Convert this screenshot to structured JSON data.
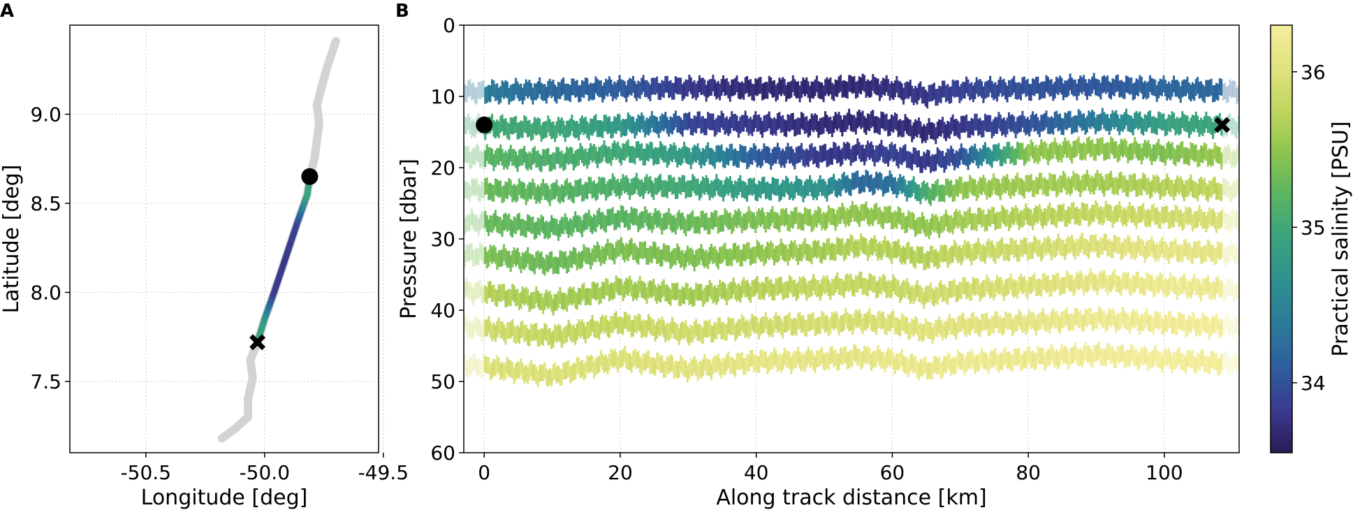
{
  "panels": {
    "a": {
      "letter": "A"
    },
    "b": {
      "letter": "B"
    }
  },
  "colorbar": {
    "label": "Practical salinity [PSU]",
    "ticks": [
      "34",
      "35",
      "36"
    ],
    "range": [
      33.55,
      36.3
    ],
    "colormap": [
      "#2b1a55",
      "#3a3b8f",
      "#2f5e9e",
      "#2c7a99",
      "#2f9090",
      "#3aa37f",
      "#5ab463",
      "#8cc44f",
      "#bfd55e",
      "#e0e27e",
      "#f4ee9e"
    ]
  },
  "chart_data": [
    {
      "type": "line",
      "panel": "A",
      "xlabel": "Longitude [deg]",
      "ylabel": "Latitude [deg]",
      "xlim": [
        -50.82,
        -49.52
      ],
      "ylim": [
        7.1,
        9.5
      ],
      "xticks": [
        "-50.5",
        "-50.0",
        "-49.5"
      ],
      "xtick_values": [
        -50.5,
        -50.0,
        -49.5
      ],
      "yticks": [
        "7.5",
        "8.0",
        "8.5",
        "9.0"
      ],
      "ytick_values": [
        7.5,
        8.0,
        8.5,
        9.0
      ],
      "grid": true,
      "full_track_color": "#d3d3d3",
      "full_track": {
        "lon": [
          -50.18,
          -50.12,
          -50.07,
          -50.07,
          -50.05,
          -50.06,
          -50.03,
          -50.0,
          -49.96,
          -49.91,
          -49.86,
          -49.82,
          -49.81,
          -49.79,
          -49.78,
          -49.77,
          -49.78,
          -49.76,
          -49.74,
          -49.72,
          -49.7
        ],
        "lat": [
          7.18,
          7.24,
          7.3,
          7.4,
          7.52,
          7.62,
          7.72,
          7.85,
          8.0,
          8.2,
          8.4,
          8.55,
          8.65,
          8.75,
          8.85,
          8.95,
          9.05,
          9.15,
          9.25,
          9.33,
          9.41
        ]
      },
      "section_track": {
        "lon": [
          -50.03,
          -50.0,
          -49.96,
          -49.91,
          -49.86,
          -49.82,
          -49.81
        ],
        "lat": [
          7.72,
          7.85,
          8.0,
          8.2,
          8.4,
          8.55,
          8.65
        ],
        "salinity": [
          35.05,
          34.8,
          33.85,
          33.8,
          33.9,
          34.9,
          35.0
        ]
      },
      "start_marker": {
        "lon": -49.81,
        "lat": 8.65,
        "symbol": "circle"
      },
      "end_marker": {
        "lon": -50.03,
        "lat": 7.72,
        "symbol": "x"
      }
    },
    {
      "type": "heatmap",
      "panel": "B",
      "xlabel": "Along track distance [km]",
      "ylabel": "Pressure [dbar]",
      "xlim": [
        -3,
        111
      ],
      "ylim": [
        60,
        0
      ],
      "xticks": [
        "0",
        "20",
        "40",
        "60",
        "80",
        "100"
      ],
      "xtick_values": [
        0,
        20,
        40,
        60,
        80,
        100
      ],
      "yticks": [
        "0",
        "10",
        "20",
        "30",
        "40",
        "50",
        "60"
      ],
      "ytick_values": [
        0,
        10,
        20,
        30,
        40,
        50,
        60
      ],
      "grid": true,
      "section_range_km": [
        0,
        108.5
      ],
      "layers": [
        {
          "nominal_pressure": 9.0,
          "x": [
            -3,
            0,
            10,
            20,
            30,
            40,
            50,
            55,
            60,
            65,
            70,
            80,
            90,
            100,
            111
          ],
          "pressure": [
            9.3,
            9.4,
            9.2,
            8.9,
            8.8,
            8.9,
            9.0,
            8.5,
            8.9,
            9.9,
            9.1,
            8.9,
            8.6,
            8.9,
            9.3
          ],
          "salinity": [
            34.4,
            34.4,
            34.2,
            34.1,
            33.8,
            33.7,
            33.7,
            33.7,
            33.75,
            33.8,
            33.9,
            34.0,
            34.05,
            34.2,
            34.2
          ]
        },
        {
          "nominal_pressure": 14.0,
          "x": [
            -3,
            0,
            10,
            20,
            30,
            40,
            50,
            55,
            60,
            65,
            70,
            80,
            90,
            100,
            111
          ],
          "pressure": [
            14.2,
            14.2,
            14.6,
            14.1,
            13.8,
            13.9,
            14.0,
            13.5,
            13.9,
            15.0,
            14.2,
            13.9,
            13.5,
            13.8,
            14.2
          ],
          "salinity": [
            35.0,
            35.0,
            35.0,
            34.8,
            33.9,
            33.8,
            33.7,
            33.7,
            33.75,
            33.7,
            33.8,
            34.0,
            34.4,
            34.9,
            35.0
          ]
        },
        {
          "nominal_pressure": 18.5,
          "x": [
            -3,
            0,
            10,
            20,
            30,
            40,
            50,
            55,
            60,
            65,
            70,
            80,
            90,
            100,
            111
          ],
          "pressure": [
            18.4,
            18.5,
            18.9,
            17.8,
            18.3,
            18.4,
            18.3,
            17.8,
            18.1,
            19.2,
            18.5,
            17.9,
            17.3,
            17.9,
            18.5
          ],
          "salinity": [
            35.2,
            35.2,
            35.1,
            35.0,
            34.8,
            34.1,
            33.8,
            33.8,
            33.9,
            33.8,
            34.0,
            35.5,
            35.5,
            35.4,
            35.6
          ]
        },
        {
          "nominal_pressure": 23.0,
          "x": [
            -3,
            0,
            10,
            20,
            30,
            40,
            50,
            55,
            60,
            65,
            70,
            80,
            90,
            100,
            111
          ],
          "pressure": [
            23.0,
            23.1,
            23.5,
            22.6,
            22.7,
            23.0,
            22.9,
            22.0,
            22.3,
            23.6,
            22.9,
            22.5,
            22.1,
            22.7,
            23.2
          ],
          "salinity": [
            35.3,
            35.3,
            35.2,
            35.1,
            35.0,
            34.8,
            34.7,
            34.2,
            34.3,
            35.1,
            35.5,
            35.6,
            35.6,
            35.7,
            35.8
          ]
        },
        {
          "nominal_pressure": 27.5,
          "x": [
            -3,
            0,
            10,
            20,
            30,
            40,
            50,
            55,
            60,
            65,
            70,
            80,
            90,
            100,
            111
          ],
          "pressure": [
            27.6,
            27.7,
            28.5,
            27.0,
            27.8,
            27.3,
            27.2,
            26.4,
            27.0,
            28.3,
            27.4,
            26.9,
            26.4,
            26.9,
            27.5
          ],
          "salinity": [
            35.3,
            35.3,
            35.2,
            35.2,
            35.3,
            35.4,
            35.5,
            35.5,
            35.5,
            35.5,
            35.6,
            35.7,
            35.8,
            35.9,
            36.0
          ]
        },
        {
          "nominal_pressure": 32.0,
          "x": [
            -3,
            0,
            10,
            20,
            30,
            40,
            50,
            55,
            60,
            65,
            70,
            80,
            90,
            100,
            111
          ],
          "pressure": [
            32.2,
            32.3,
            33.5,
            31.5,
            32.7,
            32.0,
            31.7,
            31.0,
            31.6,
            32.8,
            31.9,
            31.4,
            30.9,
            31.6,
            32.1
          ],
          "salinity": [
            35.4,
            35.4,
            35.3,
            35.4,
            35.4,
            35.5,
            35.6,
            35.7,
            35.7,
            35.7,
            35.8,
            35.9,
            36.0,
            36.1,
            36.1
          ]
        },
        {
          "nominal_pressure": 37.5,
          "x": [
            -3,
            0,
            10,
            20,
            30,
            40,
            50,
            55,
            60,
            65,
            70,
            80,
            90,
            100,
            111
          ],
          "pressure": [
            37.3,
            37.5,
            38.9,
            36.8,
            37.9,
            37.0,
            36.8,
            36.3,
            36.8,
            38.0,
            37.1,
            36.6,
            36.0,
            36.5,
            37.2
          ],
          "salinity": [
            35.7,
            35.7,
            35.6,
            35.6,
            35.6,
            35.7,
            35.8,
            35.8,
            35.8,
            35.9,
            35.9,
            36.0,
            36.1,
            36.2,
            36.2
          ]
        },
        {
          "nominal_pressure": 42.5,
          "x": [
            -3,
            0,
            10,
            20,
            30,
            40,
            50,
            55,
            60,
            65,
            70,
            80,
            90,
            100,
            111
          ],
          "pressure": [
            42.4,
            42.6,
            43.7,
            41.8,
            43.2,
            42.2,
            41.9,
            41.5,
            41.8,
            43.0,
            42.1,
            41.7,
            41.2,
            41.8,
            42.4
          ],
          "salinity": [
            35.9,
            35.9,
            35.8,
            35.8,
            35.9,
            35.9,
            35.95,
            35.95,
            36.0,
            36.05,
            36.05,
            36.1,
            36.2,
            36.25,
            36.3
          ]
        },
        {
          "nominal_pressure": 47.5,
          "x": [
            -3,
            0,
            10,
            20,
            30,
            40,
            50,
            55,
            60,
            65,
            70,
            80,
            90,
            100,
            111
          ],
          "pressure": [
            47.7,
            47.9,
            49.2,
            46.8,
            48.3,
            47.2,
            46.9,
            46.5,
            47.0,
            48.3,
            47.3,
            46.8,
            46.2,
            46.9,
            47.6
          ],
          "salinity": [
            36.0,
            36.0,
            36.0,
            36.0,
            36.05,
            36.1,
            36.1,
            36.1,
            36.15,
            36.15,
            36.2,
            36.2,
            36.25,
            36.3,
            36.3
          ]
        }
      ],
      "start_marker": {
        "x": 0,
        "pressure": 14.0,
        "symbol": "circle"
      },
      "end_marker": {
        "x": 108.5,
        "pressure": 14.0,
        "symbol": "x"
      }
    }
  ]
}
